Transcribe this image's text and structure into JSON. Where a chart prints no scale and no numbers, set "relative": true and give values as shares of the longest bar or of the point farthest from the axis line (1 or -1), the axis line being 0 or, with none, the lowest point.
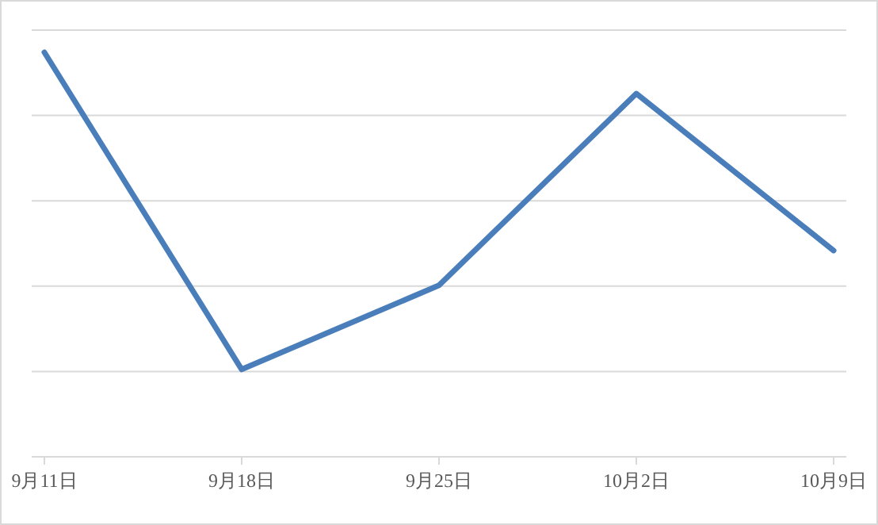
{
  "chart_data": {
    "type": "line",
    "relative": true,
    "categories": [
      "9月11日",
      "9月18日",
      "9月25日",
      "10月2日",
      "10月9日"
    ],
    "series": [
      {
        "color": "#4a7ebb",
        "values": [
          1,
          0.216,
          0.424,
          0.898,
          0.51
        ]
      }
    ],
    "grid": "y",
    "marker": "none",
    "line_style": "solid"
  }
}
